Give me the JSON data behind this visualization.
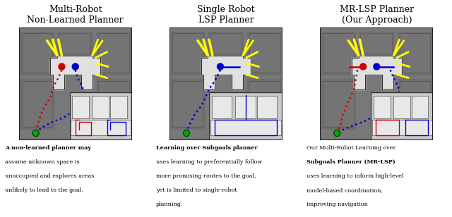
{
  "title1": "Multi-Robot\nNon-Learned Planner",
  "title2": "Single Robot\nLSP Planner",
  "title3": "MR-LSP Planner\n(Our Approach)",
  "caption1_parts": [
    {
      "text": "A non-learned planner",
      "bold": true
    },
    {
      "text": " may\nassume unknown space is\nunoccupied and explores areas\nunlikely to lead to the goal.",
      "bold": false
    }
  ],
  "caption2_parts": [
    {
      "text": "Learning over Subgoals planner\n",
      "bold": true
    },
    {
      "text": "uses learning to preferentially follow\nmore promising routes to the goal,\nyet is limited to single-robot\nplanning.",
      "bold": false
    }
  ],
  "caption3_parts": [
    {
      "text": "Our Multi-Robot Learning over\n",
      "bold": false
    },
    {
      "text": "Subgoals Planner (MR-LSP)",
      "bold": true
    },
    {
      "text": "\nuses learning to inform high-level\nmodel-based coordination,\nimproving navigation",
      "bold": false
    }
  ],
  "map_gray": "#787878",
  "room_dark": "#6a6a6a",
  "room_mid": "#717171",
  "corridor_color": "#e0e0e0",
  "yellow": "#ffff00",
  "red": "#cc0000",
  "blue": "#0000cc",
  "green": "#00aa00",
  "inset_bg": "#c8c8c8",
  "inset_room": "#e8e8e8",
  "white_bg": "#ffffff"
}
